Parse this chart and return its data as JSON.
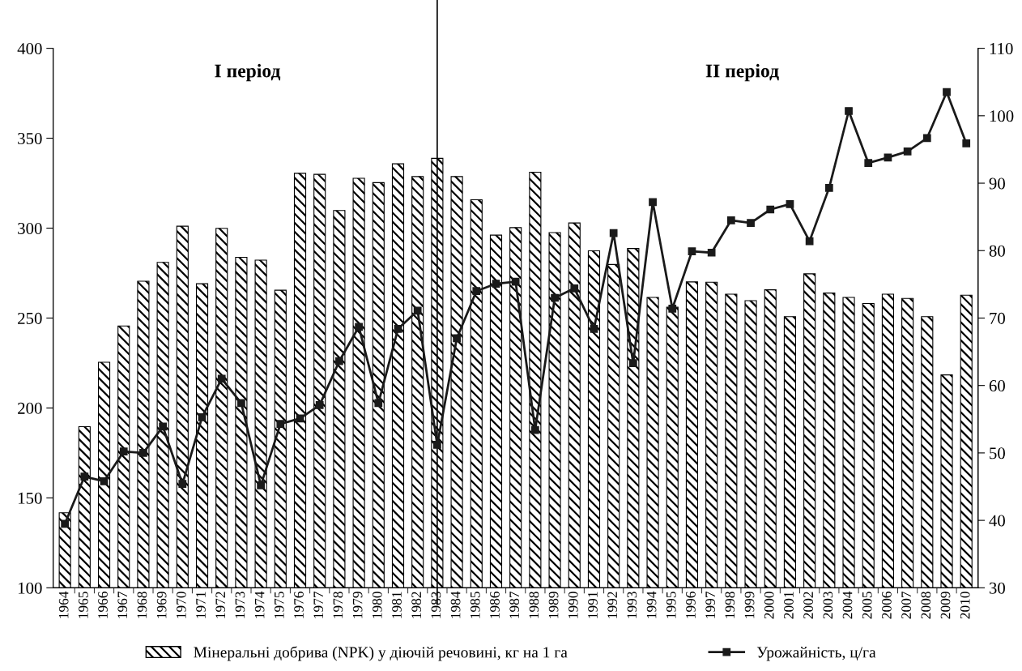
{
  "chart_data": {
    "type": "bar",
    "categories": [
      "1964",
      "1965",
      "1966",
      "1967",
      "1968",
      "1969",
      "1970",
      "1971",
      "1972",
      "1973",
      "1974",
      "1975",
      "1976",
      "1977",
      "1978",
      "1979",
      "1980",
      "1981",
      "1982",
      "1983",
      "1984",
      "1985",
      "1986",
      "1987",
      "1988",
      "1989",
      "1990",
      "1991",
      "1992",
      "1993",
      "1994",
      "1995",
      "1996",
      "1997",
      "1998",
      "1999",
      "2000",
      "2001",
      "2002",
      "2003",
      "2004",
      "2005",
      "2006",
      "2007",
      "2008",
      "2009",
      "2010"
    ],
    "series": [
      {
        "name": "Мінеральні добрива (NPK) у діючій речовині, кг на 1 га",
        "color": "#000000",
        "values": [
          141.7,
          189.6,
          225.4,
          245.6,
          270.5,
          281.0,
          301.1,
          269.1,
          299.9,
          283.8,
          282.2,
          265.5,
          330.5,
          329.9,
          309.8,
          327.7,
          325.3,
          335.8,
          328.7,
          338.8,
          328.7,
          315.8,
          296.1,
          300.3,
          331.1,
          297.5,
          302.9,
          287.4,
          279.8,
          288.7,
          261.5,
          256.0,
          270.1,
          269.9,
          263.3,
          259.7,
          265.7,
          250.8,
          274.6,
          263.9,
          261.5,
          258.1,
          263.3,
          260.9,
          250.8,
          218.4,
          262.7
        ]
      },
      {
        "name": "Урожайність, ц/га",
        "type": "line",
        "axis": "y2",
        "color": "#1a1a1a",
        "marker": "square",
        "values": [
          39.5,
          46.5,
          45.8,
          50.2,
          50.0,
          53.9,
          45.4,
          55.3,
          61.0,
          57.4,
          45.2,
          54.3,
          55.1,
          57.1,
          63.6,
          68.7,
          57.4,
          68.4,
          71.1,
          51.2,
          67.0,
          74.0,
          75.1,
          75.4,
          53.4,
          73.0,
          74.4,
          68.4,
          82.6,
          63.3,
          87.2,
          71.4,
          79.9,
          79.7,
          84.5,
          84.1,
          86.1,
          86.9,
          81.4,
          89.3,
          100.7,
          93.0,
          93.8,
          94.7,
          96.7,
          103.5,
          95.9
        ]
      }
    ],
    "ylim": [
      100,
      400
    ],
    "yticks": [
      100,
      150,
      200,
      250,
      300,
      350,
      400
    ],
    "y2lim": [
      30,
      110
    ],
    "y2ticks": [
      30,
      40,
      50,
      60,
      70,
      80,
      90,
      100,
      110
    ],
    "ref_lines": [
      {
        "axis": "x",
        "value": "1983",
        "color": "#000000"
      }
    ],
    "annotations": [
      "І період",
      "ІІ період"
    ],
    "legend": "bottom",
    "grid": false
  }
}
